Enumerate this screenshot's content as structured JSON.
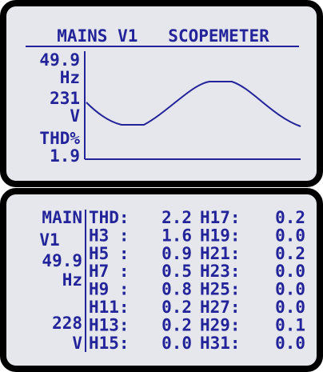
{
  "top_panel": {
    "title": "MAINS V1   SCOPEMETER",
    "labels": [
      "49.9",
      "Hz",
      "231",
      "V",
      "THD%",
      "1.9"
    ]
  },
  "bottom_panel": {
    "side_labels": [
      "MAIN",
      "V1",
      "49.9",
      "Hz",
      "228",
      "V"
    ],
    "table": {
      "rows": [
        [
          "THD:",
          "2.2",
          "H17:",
          "0.2"
        ],
        [
          "H3 :",
          "1.6",
          "H19:",
          "0.0"
        ],
        [
          "H5 :",
          "0.9",
          "H21:",
          "0.2"
        ],
        [
          "H7 :",
          "0.5",
          "H23:",
          "0.0"
        ],
        [
          "H9 :",
          "0.8",
          "H25:",
          "0.0"
        ],
        [
          "H11:",
          "0.2",
          "H27:",
          "0.0"
        ],
        [
          "H13:",
          "0.2",
          "H29:",
          "0.1"
        ],
        [
          "H15:",
          "0.0",
          "H31:",
          "0.0"
        ]
      ]
    }
  }
}
